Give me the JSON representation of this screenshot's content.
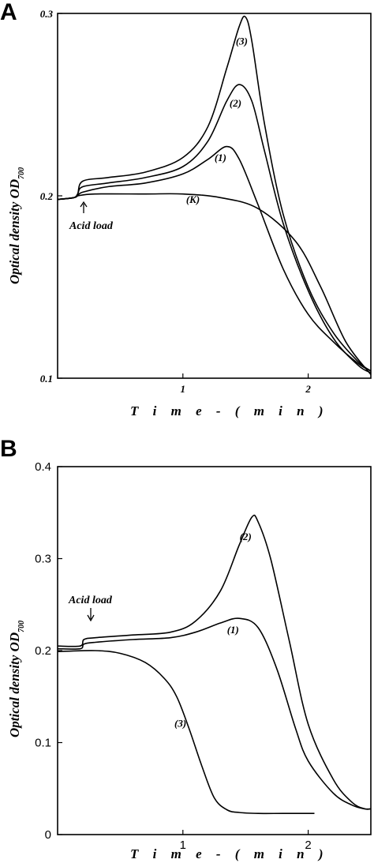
{
  "panels": [
    {
      "letter": "A",
      "xlabel": "T i m e  -  ( m i n )",
      "ylabel": "Optical density OD",
      "ylabel_sub": "700",
      "annotation": "Acid load"
    },
    {
      "letter": "B",
      "xlabel": "T i m e  -  ( m i n )",
      "ylabel": "Optical density OD",
      "ylabel_sub": "700",
      "annotation": "Acid load"
    }
  ],
  "chart_data": [
    {
      "type": "line",
      "panel": "A",
      "xlabel": "Time - (min)",
      "ylabel": "Optical density OD700",
      "xlim": [
        0,
        2.5
      ],
      "ylim": [
        0.1,
        0.3
      ],
      "xticks": [
        1,
        2
      ],
      "xtick_labels": [
        "1",
        "2"
      ],
      "yticks": [
        0.1,
        0.2,
        0.3
      ],
      "ytick_labels": [
        "0.1",
        "0.2",
        "0.3"
      ],
      "annotation": {
        "text": "Acid load",
        "x": 0.16
      },
      "series": [
        {
          "name": "(3)",
          "x": [
            0,
            0.13,
            0.16,
            0.2,
            0.4,
            0.7,
            1.0,
            1.2,
            1.35,
            1.45,
            1.5,
            1.55,
            1.65,
            1.8,
            2.0,
            2.2,
            2.4,
            2.5
          ],
          "y": [
            0.198,
            0.199,
            0.201,
            0.208,
            0.21,
            0.213,
            0.221,
            0.238,
            0.27,
            0.293,
            0.298,
            0.285,
            0.24,
            0.19,
            0.15,
            0.125,
            0.109,
            0.104
          ]
        },
        {
          "name": "(2)",
          "x": [
            0,
            0.13,
            0.16,
            0.2,
            0.4,
            0.7,
            1.0,
            1.2,
            1.35,
            1.45,
            1.55,
            1.65,
            1.8,
            2.0,
            2.2,
            2.4,
            2.5
          ],
          "y": [
            0.198,
            0.199,
            0.201,
            0.205,
            0.207,
            0.21,
            0.216,
            0.23,
            0.252,
            0.261,
            0.252,
            0.225,
            0.185,
            0.148,
            0.122,
            0.107,
            0.103
          ]
        },
        {
          "name": "(1)",
          "x": [
            0,
            0.13,
            0.16,
            0.2,
            0.4,
            0.7,
            1.0,
            1.2,
            1.35,
            1.45,
            1.6,
            1.8,
            2.0,
            2.2,
            2.4,
            2.5
          ],
          "y": [
            0.198,
            0.199,
            0.2,
            0.202,
            0.205,
            0.207,
            0.212,
            0.22,
            0.227,
            0.22,
            0.195,
            0.16,
            0.135,
            0.12,
            0.108,
            0.104
          ]
        },
        {
          "name": "(K)",
          "x": [
            0,
            0.13,
            0.16,
            0.3,
            0.7,
            1.0,
            1.3,
            1.6,
            1.9,
            2.1,
            2.3,
            2.5
          ],
          "y": [
            0.198,
            0.199,
            0.2,
            0.201,
            0.201,
            0.201,
            0.199,
            0.193,
            0.175,
            0.15,
            0.12,
            0.102
          ]
        }
      ],
      "label_positions": {
        "(3)": [
          1.47,
          0.283
        ],
        "(2)": [
          1.42,
          0.249
        ],
        "(1)": [
          1.3,
          0.219
        ],
        "(K)": [
          1.08,
          0.196
        ]
      }
    },
    {
      "type": "line",
      "panel": "B",
      "xlabel": "Time - (min)",
      "ylabel": "Optical density OD700",
      "xlim": [
        0,
        2.5
      ],
      "ylim": [
        0,
        0.4
      ],
      "xticks": [
        1,
        2
      ],
      "xtick_labels": [
        "1",
        "2"
      ],
      "yticks": [
        0,
        0.1,
        0.2,
        0.3,
        0.4
      ],
      "ytick_labels": [
        "0",
        "0.1",
        "0.2",
        "0.3",
        "0.4"
      ],
      "annotation": {
        "text": "Acid load",
        "x": 0.2
      },
      "series": [
        {
          "name": "(2)",
          "x": [
            0,
            0.18,
            0.21,
            0.3,
            0.6,
            0.9,
            1.1,
            1.3,
            1.45,
            1.55,
            1.6,
            1.7,
            1.85,
            2.0,
            2.2,
            2.35,
            2.45,
            2.5
          ],
          "y": [
            0.205,
            0.205,
            0.212,
            0.214,
            0.217,
            0.22,
            0.232,
            0.265,
            0.315,
            0.345,
            0.34,
            0.3,
            0.21,
            0.12,
            0.06,
            0.035,
            0.028,
            0.028
          ]
        },
        {
          "name": "(1)",
          "x": [
            0,
            0.18,
            0.21,
            0.3,
            0.6,
            0.9,
            1.1,
            1.3,
            1.45,
            1.6,
            1.75,
            1.9,
            2.0,
            2.2,
            2.35,
            2.45,
            2.5
          ],
          "y": [
            0.202,
            0.202,
            0.207,
            0.209,
            0.212,
            0.214,
            0.22,
            0.23,
            0.235,
            0.225,
            0.18,
            0.115,
            0.08,
            0.045,
            0.032,
            0.028,
            0.028
          ]
        },
        {
          "name": "(3)",
          "x": [
            0,
            0.3,
            0.5,
            0.7,
            0.85,
            0.95,
            1.05,
            1.15,
            1.25,
            1.35,
            1.45,
            1.6,
            1.8,
            2.05
          ],
          "y": [
            0.199,
            0.2,
            0.197,
            0.187,
            0.17,
            0.15,
            0.115,
            0.075,
            0.04,
            0.027,
            0.024,
            0.023,
            0.023,
            0.023
          ]
        }
      ],
      "label_positions": {
        "(2)": [
          1.5,
          0.32
        ],
        "(1)": [
          1.4,
          0.219
        ],
        "(3)": [
          0.98,
          0.117
        ]
      }
    }
  ]
}
